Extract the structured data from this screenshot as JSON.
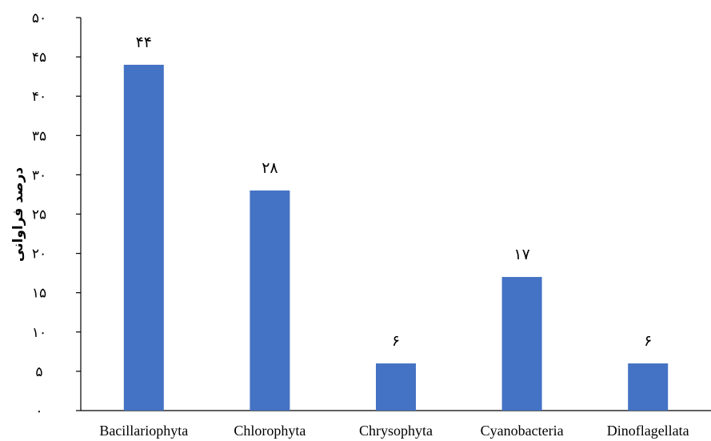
{
  "chart_data": {
    "type": "bar",
    "title": "",
    "xlabel": "",
    "ylabel": "درصد فراوانی",
    "categories": [
      "Bacillariophyta",
      "Chlorophyta",
      "Chrysophyta",
      "Cyanobacteria",
      "Dinoflagellata"
    ],
    "values": [
      44,
      28,
      6,
      17,
      6
    ],
    "data_labels": [
      "۴۴",
      "۲۸",
      "۶",
      "۱۷",
      "۶"
    ],
    "ylim": [
      0,
      50
    ],
    "yticks": [
      0,
      5,
      10,
      15,
      20,
      25,
      30,
      35,
      40,
      45,
      50
    ],
    "ytick_labels": [
      "۰",
      "۵",
      "۱۰",
      "۱۵",
      "۲۰",
      "۲۵",
      "۳۰",
      "۳۵",
      "۴۰",
      "۴۵",
      "۵۰"
    ],
    "bar_color": "#4472C4",
    "grid": false,
    "legend": "none"
  }
}
